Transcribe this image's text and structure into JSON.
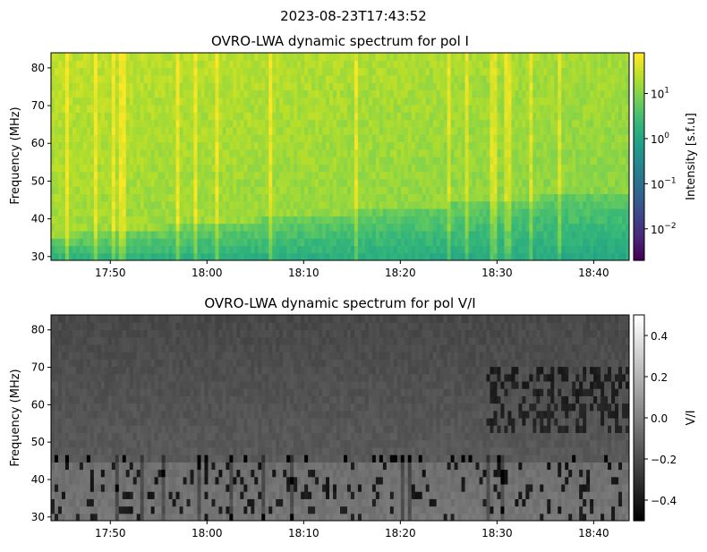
{
  "suptitle": "2023-08-23T17:43:52",
  "chart_data": [
    {
      "type": "heatmap",
      "title": "OVRO-LWA dynamic spectrum for pol I",
      "ylabel": "Frequency (MHz)",
      "xlabel": "",
      "x_range": [
        "17:43:52",
        "18:43:40"
      ],
      "ylim": [
        29,
        84
      ],
      "x_ticks": [
        "17:50",
        "18:00",
        "18:10",
        "18:20",
        "18:30",
        "18:40"
      ],
      "y_ticks": [
        30,
        40,
        50,
        60,
        70,
        80
      ],
      "colormap": "viridis",
      "color_scale": "log",
      "color_range": [
        0.002,
        80
      ],
      "colorbar_label": "Intensity [s.f.u]",
      "colorbar_ticks": [
        {
          "value": 0.01,
          "base": "10",
          "exp": "−2"
        },
        {
          "value": 0.1,
          "base": "10",
          "exp": "−1"
        },
        {
          "value": 1,
          "base": "10",
          "exp": "0"
        },
        {
          "value": 10,
          "base": "10",
          "exp": "1"
        }
      ]
    },
    {
      "type": "heatmap",
      "title": "OVRO-LWA dynamic spectrum for pol V/I",
      "ylabel": "Frequency (MHz)",
      "xlabel": "",
      "x_range": [
        "17:43:52",
        "18:43:40"
      ],
      "ylim": [
        29,
        84
      ],
      "x_ticks": [
        "17:50",
        "18:00",
        "18:10",
        "18:20",
        "18:30",
        "18:40"
      ],
      "y_ticks": [
        30,
        40,
        50,
        60,
        70,
        80
      ],
      "colormap": "gray",
      "color_scale": "linear",
      "color_range": [
        -0.5,
        0.5
      ],
      "colorbar_label": "V/I",
      "colorbar_ticks": [
        {
          "value": -0.4,
          "label": "−0.4"
        },
        {
          "value": -0.2,
          "label": "−0.2"
        },
        {
          "value": 0.0,
          "label": "0.0"
        },
        {
          "value": 0.2,
          "label": "0.2"
        },
        {
          "value": 0.4,
          "label": "0.4"
        }
      ]
    }
  ]
}
